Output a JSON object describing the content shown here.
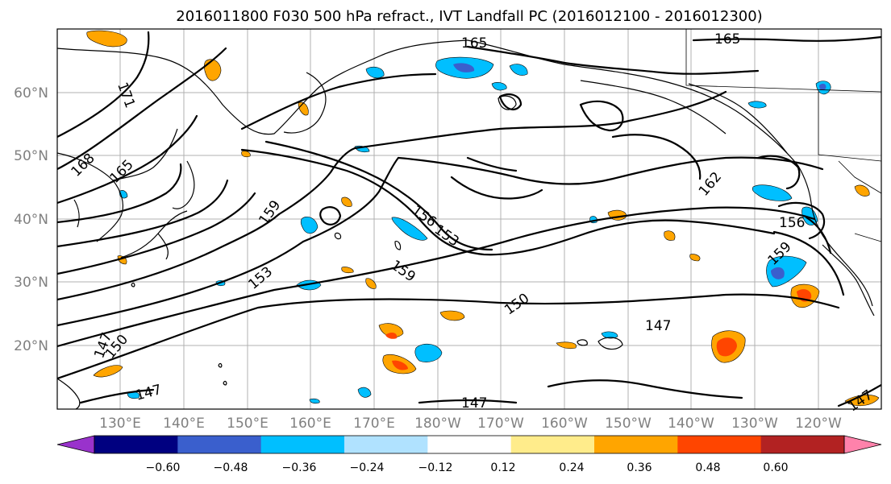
{
  "title": "2016011800 F030 500 hPa refract., IVT Landfall PC (2016012100 - 2016012300)",
  "map": {
    "lat_ticks": [
      "60°N",
      "50°N",
      "40°N",
      "30°N",
      "20°N"
    ],
    "lon_ticks": [
      "130°E",
      "140°E",
      "150°E",
      "160°E",
      "170°E",
      "180°W",
      "170°W",
      "160°W",
      "150°W",
      "140°W",
      "130°W",
      "120°W"
    ],
    "gridlines": "on",
    "contour_color": "#000000",
    "contour_labels": [
      "165",
      "165",
      "171",
      "168",
      "165",
      "162",
      "159",
      "156",
      "153",
      "156",
      "159",
      "159",
      "153",
      "150",
      "147",
      "147",
      "150",
      "147",
      "147",
      "147"
    ]
  },
  "colorbar": {
    "ticks": [
      "−0.60",
      "−0.48",
      "−0.36",
      "−0.24",
      "−0.12",
      "0.12",
      "0.24",
      "0.36",
      "0.48",
      "0.60"
    ],
    "colors": [
      "#9932cc",
      "#000080",
      "#3a5fcd",
      "#00bfff",
      "#b0e2ff",
      "#ffffff",
      "#ffec8b",
      "#ffa500",
      "#ff4500",
      "#b22222",
      "#ff82ab"
    ],
    "extend": "both"
  }
}
